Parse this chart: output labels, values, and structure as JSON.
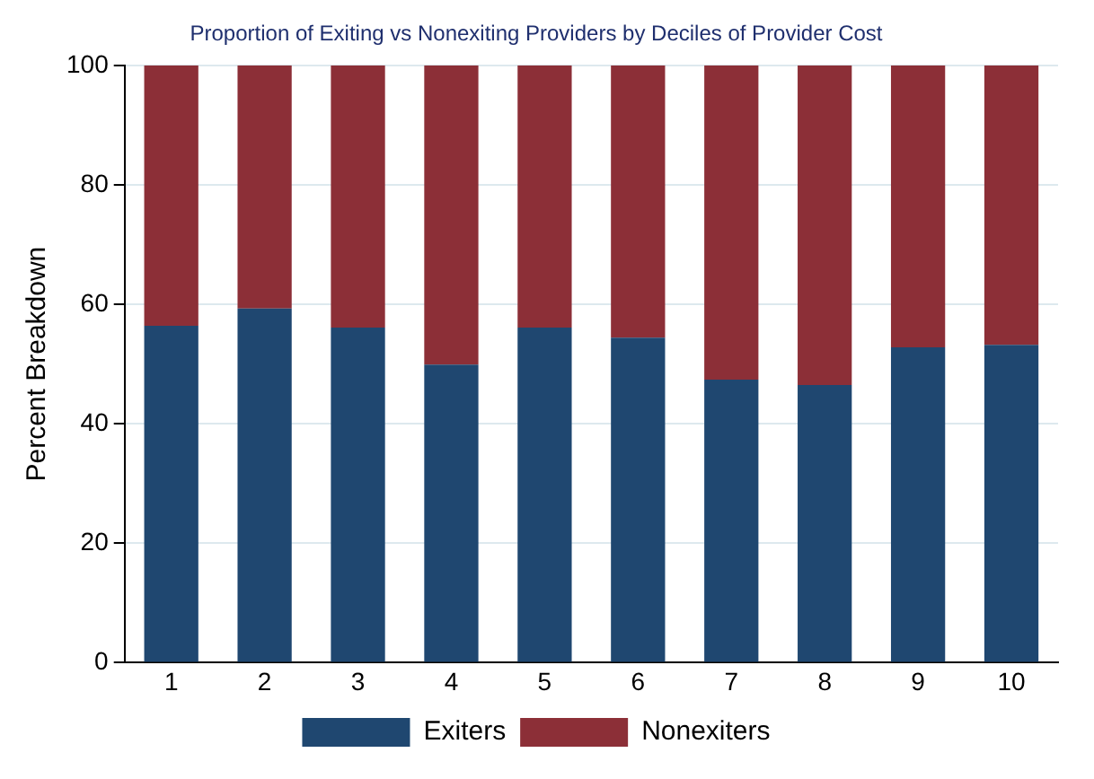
{
  "chart_data": {
    "type": "bar",
    "title": "Proportion of Exiting vs Nonexiting Providers by Deciles of Provider Cost",
    "ylabel": "Percent Breakdown",
    "categories": [
      "1",
      "2",
      "3",
      "4",
      "5",
      "6",
      "7",
      "8",
      "9",
      "10"
    ],
    "stacked": true,
    "series": [
      {
        "name": "Exiters",
        "color": "#1f4770",
        "values": [
          56.4,
          59.3,
          56.1,
          49.9,
          56.1,
          54.4,
          47.4,
          46.5,
          52.8,
          53.2
        ]
      },
      {
        "name": "Nonexiters",
        "color": "#8c2f37",
        "values": [
          43.6,
          40.7,
          43.9,
          50.1,
          43.9,
          45.6,
          52.6,
          53.5,
          47.2,
          46.8
        ]
      }
    ],
    "ylim": [
      0,
      100
    ],
    "yticks": [
      0,
      20,
      40,
      60,
      80,
      100
    ],
    "grid": "y",
    "legend": "bottom"
  }
}
